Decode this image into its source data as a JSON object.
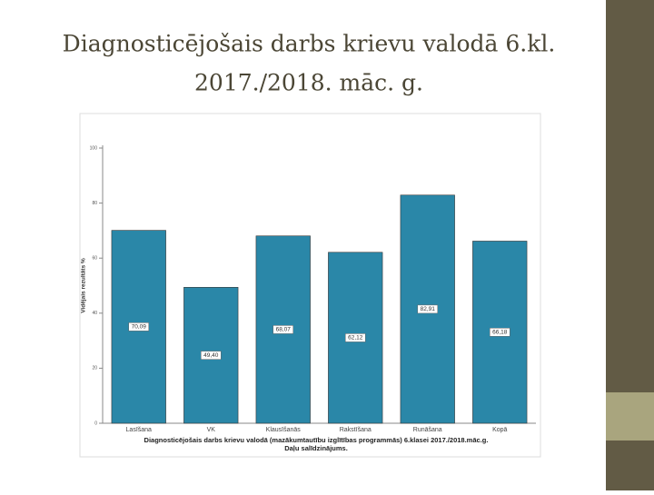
{
  "header": {
    "title_lines": [
      "Diagnosticējošais darbs krievu valodā 6.kl.",
      "2017./2018. māc. g."
    ]
  },
  "chart_data": {
    "type": "bar",
    "categories": [
      "Lasīšana",
      "VK",
      "Klausīšanās",
      "Rakstīšana",
      "Runāšana",
      "Kopā"
    ],
    "values": [
      70.09,
      49.4,
      68.07,
      62.12,
      82.91,
      66.18
    ],
    "value_labels": [
      "70,09",
      "49,40",
      "68,07",
      "62,12",
      "82,91",
      "66,18"
    ],
    "color": "#2a87a8",
    "ylabel": "Vidējais rezultāts %",
    "xlabel": [
      "Diagnosticējošais darbs krievu valodā (mazākumtautību izglītības programmās) 6.klasei 2017./2018.māc.g.",
      "Daļu salīdzinājums."
    ],
    "ylim": [
      0,
      100
    ],
    "yticks": [
      0,
      20,
      40,
      60,
      80,
      100
    ],
    "grid": false
  }
}
